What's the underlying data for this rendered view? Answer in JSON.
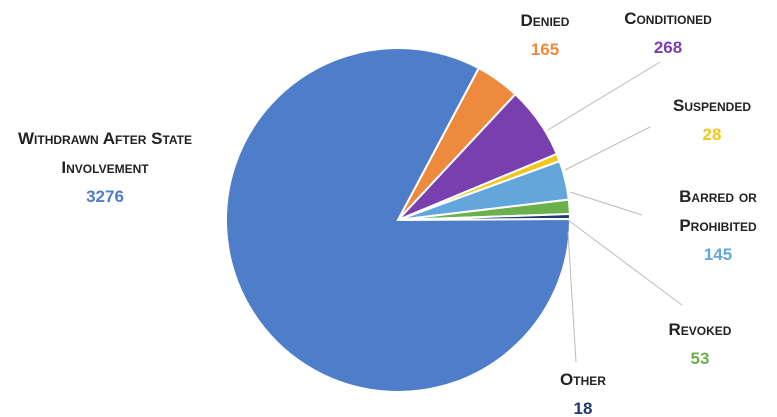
{
  "chart_data": {
    "type": "pie",
    "categories": [
      "Denied",
      "Conditioned",
      "Suspended",
      "Barred or Prohibited",
      "Revoked",
      "Other",
      "Withdrawn After State Involvement"
    ],
    "values": [
      165,
      268,
      28,
      145,
      53,
      18,
      3276
    ],
    "colors": [
      "#ed8a3d",
      "#7a3fae",
      "#f5c518",
      "#62a6dc",
      "#6ab04c",
      "#1f3a6e",
      "#4e7ec9"
    ]
  }
}
